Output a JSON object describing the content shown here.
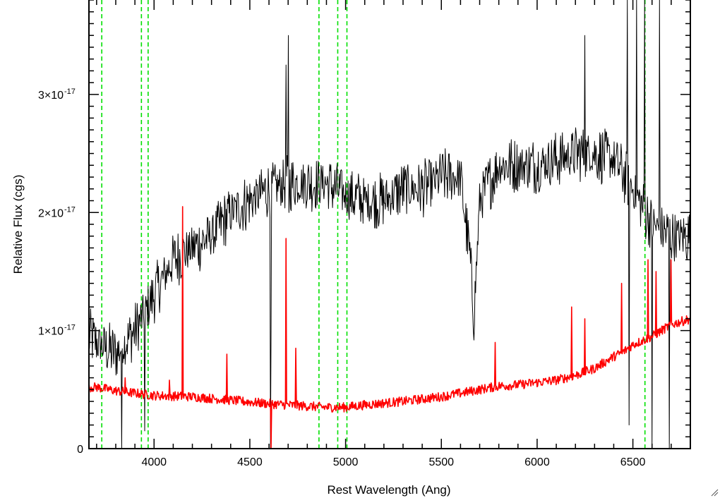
{
  "chart_data": {
    "type": "line",
    "title": "",
    "xlabel": "Rest Wavelength (Ang)",
    "ylabel": "Relative Flux (cgs)",
    "xlim": [
      3660,
      6800
    ],
    "ylim": [
      0,
      3.8e-17
    ],
    "x_ticks": [
      {
        "value": 4000,
        "label": "4000"
      },
      {
        "value": 4500,
        "label": "4500"
      },
      {
        "value": 5000,
        "label": "5000"
      },
      {
        "value": 5500,
        "label": "5500"
      },
      {
        "value": 6000,
        "label": "6000"
      },
      {
        "value": 6500,
        "label": "6500"
      }
    ],
    "y_ticks": [
      {
        "value": 0,
        "mantissa": "0",
        "exponent": ""
      },
      {
        "value": 1e-17,
        "mantissa": "1×10",
        "exponent": "-17"
      },
      {
        "value": 2e-17,
        "mantissa": "2×10",
        "exponent": "-17"
      },
      {
        "value": 3e-17,
        "mantissa": "3×10",
        "exponent": "-17"
      }
    ],
    "x_minor_step": 100,
    "y_minor_step": 1e-18,
    "vlines": [
      3727,
      3934,
      3969,
      4861,
      4959,
      5007,
      6563
    ],
    "series": [
      {
        "color": "#000000",
        "noise": 0.25,
        "x": [
          3660,
          3700,
          3800,
          3900,
          4000,
          4100,
          4200,
          4300,
          4400,
          4500,
          4600,
          4700,
          4800,
          4900,
          5000,
          5100,
          5200,
          5300,
          5400,
          5500,
          5600,
          5650,
          5670,
          5700,
          5800,
          5900,
          6000,
          6100,
          6200,
          6300,
          6400,
          6500,
          6600,
          6700,
          6800
        ],
        "y": [
          0.95,
          0.9,
          0.8,
          1.0,
          1.3,
          1.6,
          1.7,
          1.8,
          2.0,
          2.1,
          2.2,
          2.25,
          2.25,
          2.25,
          2.15,
          2.1,
          2.1,
          2.2,
          2.2,
          2.3,
          2.3,
          1.6,
          1.1,
          2.1,
          2.4,
          2.4,
          2.4,
          2.45,
          2.5,
          2.5,
          2.45,
          2.2,
          1.9,
          1.8,
          1.8
        ],
        "y_scale": 1e-17,
        "spikes": [
          {
            "x": 4608,
            "y": 0.0
          },
          {
            "x": 4612,
            "y": 1.0
          },
          {
            "x": 4690,
            "y": 3.25
          },
          {
            "x": 4700,
            "y": 3.5
          },
          {
            "x": 4705,
            "y": 2.0
          },
          {
            "x": 3830,
            "y": 0.0
          },
          {
            "x": 3950,
            "y": 0.15
          },
          {
            "x": 6250,
            "y": 3.5
          },
          {
            "x": 6480,
            "y": 0.2
          },
          {
            "x": 6520,
            "y": 3.8
          },
          {
            "x": 6560,
            "y": 3.8
          },
          {
            "x": 6600,
            "y": 0.0
          },
          {
            "x": 6640,
            "y": 3.8
          },
          {
            "x": 6690,
            "y": 0.0
          },
          {
            "x": 6470,
            "y": 3.8
          }
        ]
      },
      {
        "color": "#ff0000",
        "noise": 0.04,
        "x": [
          3660,
          3700,
          3800,
          3900,
          4000,
          4200,
          4400,
          4600,
          4700,
          4800,
          4900,
          5000,
          5100,
          5300,
          5500,
          5700,
          5800,
          5900,
          6000,
          6100,
          6200,
          6300,
          6400,
          6450,
          6500,
          6600,
          6700,
          6800
        ],
        "y": [
          0.52,
          0.52,
          0.49,
          0.47,
          0.45,
          0.44,
          0.41,
          0.38,
          0.37,
          0.36,
          0.35,
          0.35,
          0.37,
          0.4,
          0.44,
          0.5,
          0.53,
          0.54,
          0.56,
          0.58,
          0.62,
          0.68,
          0.78,
          0.82,
          0.88,
          0.95,
          1.05,
          1.1
        ],
        "y_scale": 1e-17,
        "spikes": [
          {
            "x": 4150,
            "y": 2.05
          },
          {
            "x": 4380,
            "y": 0.8
          },
          {
            "x": 4690,
            "y": 1.78
          },
          {
            "x": 4740,
            "y": 0.85
          },
          {
            "x": 4612,
            "y": 0.0
          },
          {
            "x": 3850,
            "y": 0.6
          },
          {
            "x": 4080,
            "y": 0.58
          },
          {
            "x": 6440,
            "y": 1.4
          },
          {
            "x": 6580,
            "y": 1.6
          },
          {
            "x": 6620,
            "y": 1.5
          },
          {
            "x": 6700,
            "y": 1.6
          },
          {
            "x": 6250,
            "y": 1.1
          },
          {
            "x": 6180,
            "y": 1.2
          },
          {
            "x": 5780,
            "y": 0.9
          }
        ]
      }
    ]
  },
  "style": {
    "axis_color": "#000000",
    "vline_color": "#00e000",
    "background": "#ffffff"
  }
}
